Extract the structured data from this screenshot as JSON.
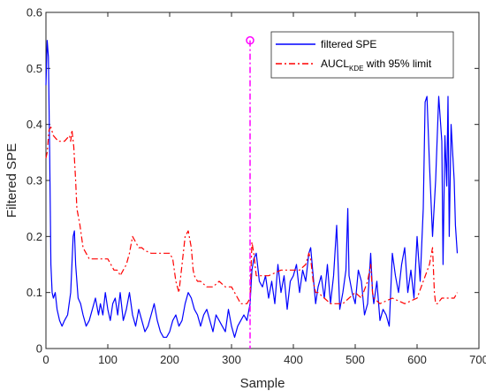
{
  "chart_data": {
    "type": "line",
    "xlabel": "Sample",
    "ylabel": "Filtered SPE",
    "xlim": [
      0,
      700
    ],
    "ylim": [
      0,
      0.6
    ],
    "x_ticks": [
      "0",
      "100",
      "200",
      "300",
      "400",
      "500",
      "600",
      "700"
    ],
    "y_ticks": [
      "0",
      "0.1",
      "0.2",
      "0.3",
      "0.4",
      "0.5",
      "0.6"
    ],
    "grid": false,
    "legend_position": "top-right",
    "fault_marker": {
      "x": 330,
      "y": 0.55,
      "color": "#ff00ff",
      "style": "dash-dot vertical line with circle marker"
    },
    "series": [
      {
        "name": "filtered SPE",
        "color": "#0000ff",
        "style": "solid",
        "x": [
          0,
          2,
          4,
          6,
          8,
          10,
          12,
          15,
          18,
          22,
          26,
          30,
          35,
          40,
          44,
          46,
          48,
          52,
          56,
          60,
          65,
          70,
          75,
          80,
          85,
          88,
          92,
          96,
          100,
          104,
          108,
          112,
          116,
          120,
          125,
          130,
          135,
          140,
          145,
          150,
          155,
          160,
          165,
          170,
          175,
          180,
          185,
          190,
          195,
          200,
          205,
          210,
          215,
          220,
          225,
          230,
          235,
          240,
          245,
          250,
          255,
          260,
          265,
          270,
          275,
          280,
          285,
          290,
          295,
          300,
          305,
          310,
          315,
          320,
          325,
          330,
          333,
          336,
          340,
          345,
          350,
          355,
          360,
          365,
          370,
          375,
          380,
          385,
          390,
          395,
          400,
          405,
          410,
          415,
          420,
          425,
          428,
          432,
          436,
          440,
          445,
          450,
          455,
          460,
          465,
          470,
          475,
          480,
          485,
          488,
          490,
          495,
          500,
          505,
          510,
          515,
          520,
          525,
          528,
          530,
          535,
          540,
          545,
          550,
          555,
          560,
          565,
          570,
          575,
          580,
          585,
          590,
          595,
          600,
          605,
          610,
          613,
          616,
          620,
          625,
          630,
          635,
          640,
          642,
          645,
          648,
          650,
          652,
          655,
          658,
          660,
          662,
          665
        ],
        "values": [
          0.47,
          0.55,
          0.52,
          0.35,
          0.15,
          0.1,
          0.09,
          0.1,
          0.07,
          0.05,
          0.04,
          0.05,
          0.06,
          0.1,
          0.2,
          0.21,
          0.15,
          0.09,
          0.08,
          0.06,
          0.04,
          0.05,
          0.07,
          0.09,
          0.06,
          0.08,
          0.06,
          0.1,
          0.07,
          0.05,
          0.08,
          0.09,
          0.06,
          0.1,
          0.05,
          0.07,
          0.1,
          0.06,
          0.04,
          0.07,
          0.05,
          0.03,
          0.04,
          0.06,
          0.08,
          0.05,
          0.03,
          0.02,
          0.02,
          0.03,
          0.05,
          0.06,
          0.04,
          0.05,
          0.08,
          0.1,
          0.09,
          0.07,
          0.06,
          0.04,
          0.06,
          0.07,
          0.05,
          0.03,
          0.06,
          0.05,
          0.04,
          0.03,
          0.07,
          0.04,
          0.02,
          0.04,
          0.05,
          0.06,
          0.05,
          0.08,
          0.14,
          0.16,
          0.17,
          0.12,
          0.11,
          0.13,
          0.09,
          0.12,
          0.08,
          0.15,
          0.1,
          0.13,
          0.07,
          0.12,
          0.13,
          0.15,
          0.1,
          0.14,
          0.12,
          0.17,
          0.18,
          0.13,
          0.08,
          0.11,
          0.13,
          0.09,
          0.15,
          0.08,
          0.13,
          0.22,
          0.07,
          0.1,
          0.14,
          0.25,
          0.13,
          0.1,
          0.08,
          0.14,
          0.12,
          0.06,
          0.08,
          0.17,
          0.1,
          0.08,
          0.12,
          0.05,
          0.07,
          0.06,
          0.04,
          0.17,
          0.13,
          0.1,
          0.15,
          0.18,
          0.1,
          0.14,
          0.09,
          0.2,
          0.12,
          0.25,
          0.44,
          0.45,
          0.33,
          0.2,
          0.3,
          0.45,
          0.37,
          0.15,
          0.38,
          0.29,
          0.45,
          0.2,
          0.4,
          0.34,
          0.3,
          0.22,
          0.17
        ]
      },
      {
        "name": "AUCL_KDE with 95% limit",
        "name_main": "AUCL",
        "name_sub": "KDE",
        "name_tail": " with 95% limit",
        "color": "#ff0000",
        "style": "dash-dot",
        "x": [
          0,
          2,
          5,
          8,
          12,
          20,
          30,
          38,
          40,
          42,
          45,
          48,
          50,
          55,
          60,
          70,
          80,
          90,
          100,
          110,
          115,
          118,
          120,
          125,
          130,
          135,
          140,
          145,
          150,
          155,
          160,
          170,
          180,
          190,
          200,
          205,
          210,
          215,
          220,
          225,
          230,
          235,
          238,
          240,
          245,
          250,
          260,
          270,
          280,
          290,
          300,
          305,
          310,
          315,
          318,
          320,
          325,
          330,
          333,
          336,
          340,
          350,
          360,
          380,
          400,
          410,
          420,
          425,
          428,
          432,
          436,
          440,
          450,
          460,
          480,
          500,
          510,
          520,
          525,
          528,
          530,
          540,
          560,
          580,
          600,
          620,
          625,
          628,
          630,
          633,
          640,
          650,
          660,
          665
        ],
        "values": [
          0.34,
          0.35,
          0.39,
          0.395,
          0.38,
          0.37,
          0.37,
          0.38,
          0.37,
          0.39,
          0.36,
          0.3,
          0.25,
          0.22,
          0.18,
          0.16,
          0.16,
          0.16,
          0.16,
          0.14,
          0.14,
          0.135,
          0.13,
          0.14,
          0.15,
          0.17,
          0.2,
          0.19,
          0.18,
          0.18,
          0.175,
          0.17,
          0.17,
          0.17,
          0.17,
          0.16,
          0.12,
          0.1,
          0.15,
          0.2,
          0.21,
          0.18,
          0.14,
          0.13,
          0.12,
          0.12,
          0.11,
          0.11,
          0.12,
          0.11,
          0.11,
          0.1,
          0.09,
          0.08,
          0.08,
          0.08,
          0.08,
          0.09,
          0.19,
          0.17,
          0.13,
          0.13,
          0.13,
          0.14,
          0.14,
          0.14,
          0.15,
          0.17,
          0.16,
          0.12,
          0.1,
          0.1,
          0.09,
          0.08,
          0.08,
          0.1,
          0.09,
          0.12,
          0.15,
          0.1,
          0.09,
          0.08,
          0.09,
          0.08,
          0.09,
          0.15,
          0.18,
          0.1,
          0.08,
          0.08,
          0.09,
          0.09,
          0.09,
          0.1
        ]
      }
    ]
  }
}
